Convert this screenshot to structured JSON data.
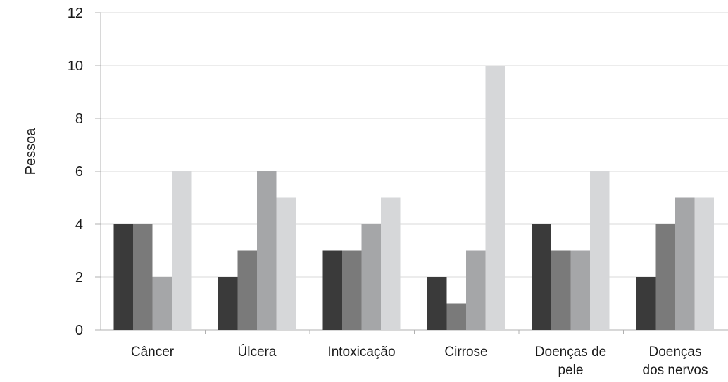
{
  "chart_data": {
    "type": "bar",
    "title": "",
    "xlabel": "",
    "ylabel": "Pessoa",
    "ylim": [
      0,
      12
    ],
    "yticks": [
      "0",
      "2",
      "4",
      "6",
      "8",
      "10",
      "12"
    ],
    "grid": true,
    "legend": "none",
    "categories": [
      [
        "Câncer"
      ],
      [
        "Úlcera"
      ],
      [
        "Intoxicação"
      ],
      [
        "Cirrose"
      ],
      [
        "Doenças de",
        "pele"
      ],
      [
        "Doenças",
        "dos nervos"
      ]
    ],
    "series": [
      {
        "color": "#3a3a3a",
        "values": [
          4,
          2,
          3,
          2,
          4,
          2
        ]
      },
      {
        "color": "#7a7a7a",
        "values": [
          4,
          3,
          3,
          1,
          3,
          4
        ]
      },
      {
        "color": "#a5a6a8",
        "values": [
          2,
          6,
          4,
          3,
          3,
          5
        ]
      },
      {
        "color": "#d6d7d9",
        "values": [
          6,
          5,
          5,
          10,
          6,
          5
        ]
      }
    ],
    "colors": {
      "grid": "#d9d9d9",
      "axis": "#b0b0b0",
      "text": "#1a1a1a"
    }
  }
}
